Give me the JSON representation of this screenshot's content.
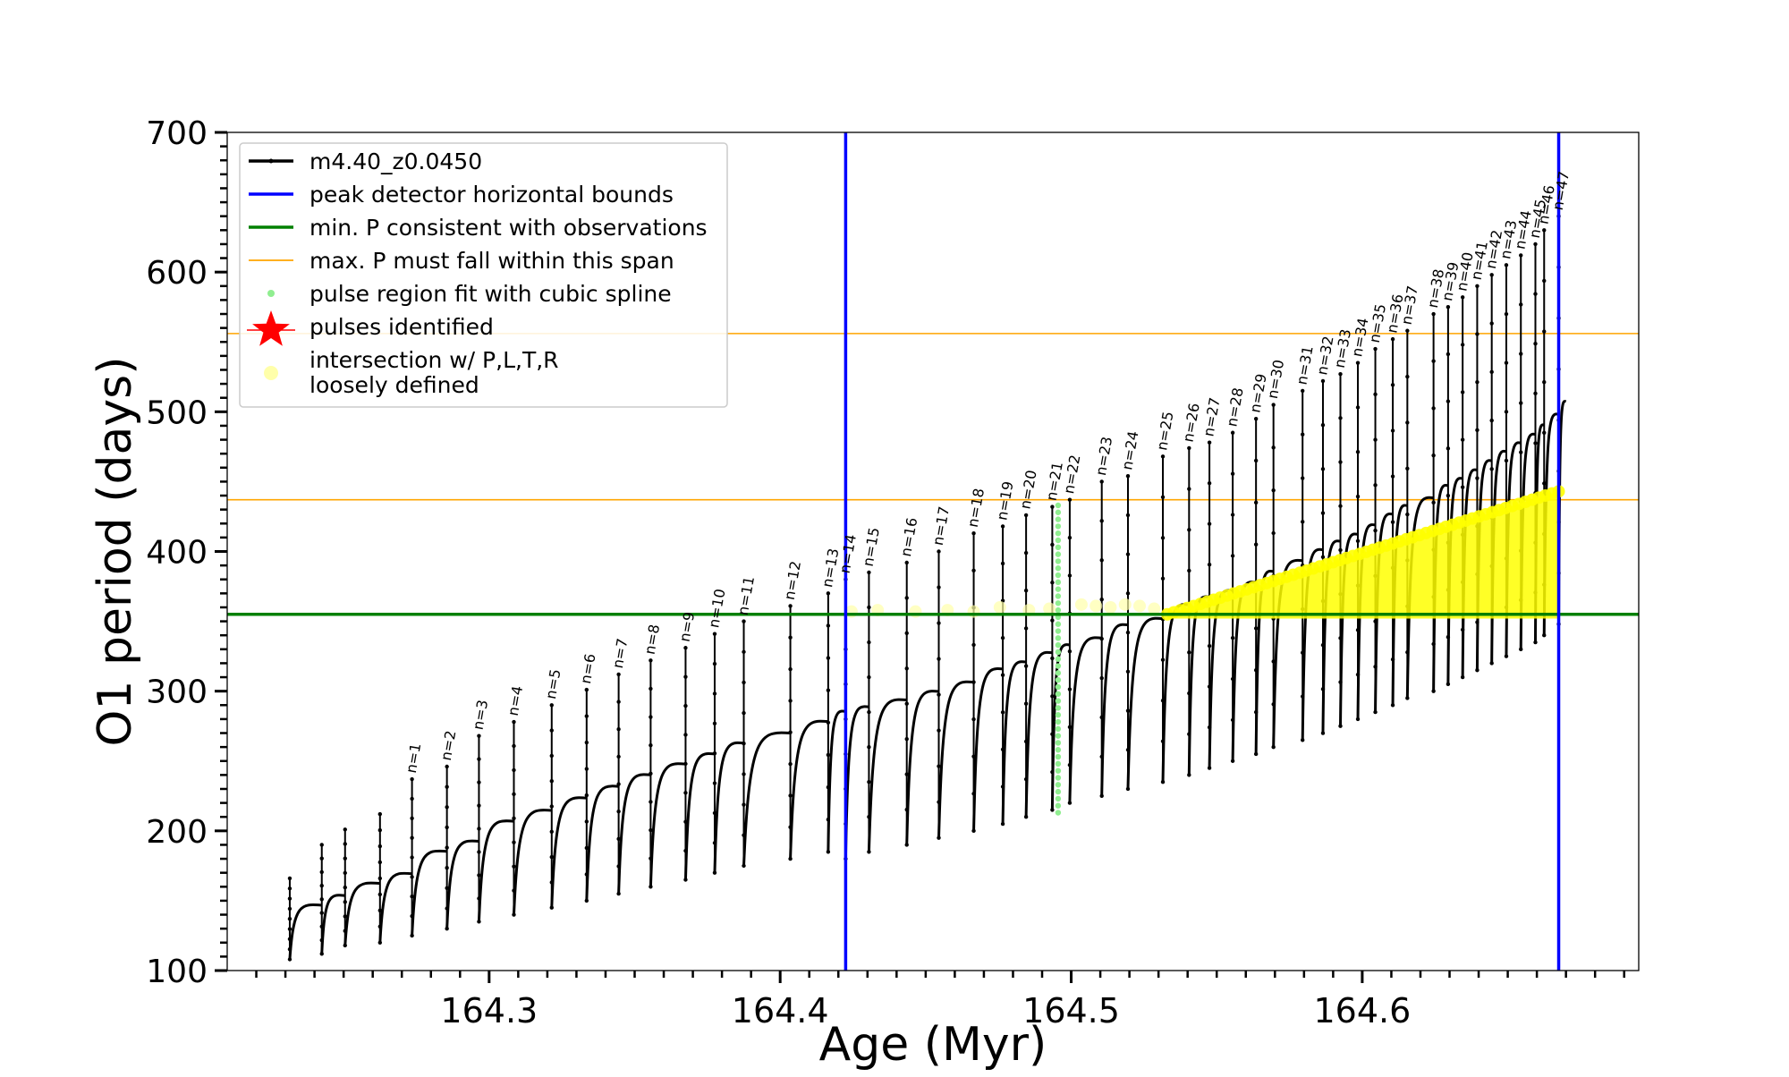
{
  "chart_data": {
    "type": "line",
    "xlabel": "Age (Myr)",
    "ylabel": "O1 period (days)",
    "xlim": [
      164.21,
      164.695
    ],
    "ylim": [
      100,
      700
    ],
    "x_ticks": [
      164.3,
      164.4,
      164.5,
      164.6
    ],
    "x_tick_labels": [
      "164.3",
      "164.4",
      "164.5",
      "164.6"
    ],
    "y_ticks": [
      100,
      200,
      300,
      400,
      500,
      600,
      700
    ],
    "y_tick_labels": [
      "100",
      "200",
      "300",
      "400",
      "500",
      "600",
      "700"
    ],
    "grid": false,
    "legend_position": "top-left",
    "legend": [
      {
        "label": "m4.40_z0.0450",
        "kind": "line-dot",
        "color": "#000000"
      },
      {
        "label": "peak detector horizontal bounds",
        "kind": "line",
        "color": "#0000ff"
      },
      {
        "label": "min. P consistent with observations",
        "kind": "line",
        "color": "#008000"
      },
      {
        "label": "max. P must fall within this span",
        "kind": "line",
        "color": "#ffa500"
      },
      {
        "label": "pulse region fit with cubic spline",
        "kind": "dot",
        "color": "#90ee90"
      },
      {
        "label": "pulses identified",
        "kind": "star",
        "color": "#ff0000"
      },
      {
        "label": "intersection w/ P,L,T,R",
        "label2": "loosely defined",
        "kind": "bigdot",
        "color": "#ffffaa"
      }
    ],
    "vertical_lines": [
      164.4225,
      164.6675
    ],
    "min_period": 355,
    "max_period_span": [
      437,
      556
    ],
    "pulse_labels": [
      "n=1",
      "n=2",
      "n=3",
      "n=4",
      "n=5",
      "n=6",
      "n=7",
      "n=8",
      "n=9",
      "n=10",
      "n=11",
      "n=12",
      "n=13",
      "n=14",
      "n=15",
      "n=16",
      "n=17",
      "n=18",
      "n=19",
      "n=20",
      "n=21",
      "n=22",
      "n=23",
      "n=24",
      "n=25",
      "n=26",
      "n=27",
      "n=28",
      "n=29",
      "n=30",
      "n=31",
      "n=32",
      "n=33",
      "n=34",
      "n=35",
      "n=36",
      "n=37",
      "n=38",
      "n=39",
      "n=40",
      "n=41",
      "n=42",
      "n=43",
      "n=44",
      "n=45",
      "n=46",
      "n=47"
    ],
    "pulses_pre": [
      {
        "x": 164.2315,
        "peak": 166,
        "min": 108
      },
      {
        "x": 164.2425,
        "peak": 190,
        "min": 112
      },
      {
        "x": 164.2505,
        "peak": 201,
        "min": 118
      },
      {
        "x": 164.2625,
        "peak": 212,
        "min": 120
      }
    ],
    "pulses": [
      {
        "x": 164.2735,
        "peak": 237,
        "min": 125
      },
      {
        "x": 164.2855,
        "peak": 246,
        "min": 130
      },
      {
        "x": 164.2965,
        "peak": 268,
        "min": 135
      },
      {
        "x": 164.3085,
        "peak": 278,
        "min": 140
      },
      {
        "x": 164.3215,
        "peak": 290,
        "min": 145
      },
      {
        "x": 164.3335,
        "peak": 301,
        "min": 150
      },
      {
        "x": 164.3445,
        "peak": 312,
        "min": 155
      },
      {
        "x": 164.3555,
        "peak": 322,
        "min": 160
      },
      {
        "x": 164.3675,
        "peak": 331,
        "min": 165
      },
      {
        "x": 164.3775,
        "peak": 341,
        "min": 170
      },
      {
        "x": 164.3875,
        "peak": 350,
        "min": 175
      },
      {
        "x": 164.4035,
        "peak": 361,
        "min": 180
      },
      {
        "x": 164.4165,
        "peak": 370,
        "min": 185
      },
      {
        "x": 164.4225,
        "peak": 380,
        "min": 180
      },
      {
        "x": 164.4305,
        "peak": 385,
        "min": 185
      },
      {
        "x": 164.4435,
        "peak": 392,
        "min": 190
      },
      {
        "x": 164.4545,
        "peak": 400,
        "min": 195
      },
      {
        "x": 164.4665,
        "peak": 413,
        "min": 200
      },
      {
        "x": 164.4765,
        "peak": 418,
        "min": 205
      },
      {
        "x": 164.4845,
        "peak": 426,
        "min": 210
      },
      {
        "x": 164.4935,
        "peak": 432,
        "min": 215
      },
      {
        "x": 164.4995,
        "peak": 437,
        "min": 220
      },
      {
        "x": 164.5105,
        "peak": 450,
        "min": 225
      },
      {
        "x": 164.5195,
        "peak": 454,
        "min": 230
      },
      {
        "x": 164.5315,
        "peak": 468,
        "min": 235
      },
      {
        "x": 164.5405,
        "peak": 474,
        "min": 240
      },
      {
        "x": 164.5475,
        "peak": 478,
        "min": 245
      },
      {
        "x": 164.5555,
        "peak": 485,
        "min": 250
      },
      {
        "x": 164.5635,
        "peak": 495,
        "min": 255
      },
      {
        "x": 164.5695,
        "peak": 505,
        "min": 260
      },
      {
        "x": 164.5795,
        "peak": 515,
        "min": 265
      },
      {
        "x": 164.5865,
        "peak": 522,
        "min": 270
      },
      {
        "x": 164.5925,
        "peak": 527,
        "min": 275
      },
      {
        "x": 164.5985,
        "peak": 535,
        "min": 280
      },
      {
        "x": 164.6045,
        "peak": 545,
        "min": 285
      },
      {
        "x": 164.6105,
        "peak": 552,
        "min": 290
      },
      {
        "x": 164.6155,
        "peak": 558,
        "min": 295
      },
      {
        "x": 164.6245,
        "peak": 570,
        "min": 300
      },
      {
        "x": 164.6295,
        "peak": 575,
        "min": 305
      },
      {
        "x": 164.6345,
        "peak": 582,
        "min": 310
      },
      {
        "x": 164.6395,
        "peak": 590,
        "min": 315
      },
      {
        "x": 164.6445,
        "peak": 598,
        "min": 320
      },
      {
        "x": 164.6495,
        "peak": 605,
        "min": 325
      },
      {
        "x": 164.6545,
        "peak": 612,
        "min": 330
      },
      {
        "x": 164.6595,
        "peak": 620,
        "min": 335
      },
      {
        "x": 164.6625,
        "peak": 630,
        "min": 340
      },
      {
        "x": 164.6675,
        "peak": 640,
        "min": 348
      }
    ],
    "spline_fit": {
      "x": 164.4955,
      "ymin": 213,
      "ymax": 437
    },
    "intersection_region": {
      "x_start": 164.533,
      "x_end": 164.6675,
      "y_low": 352,
      "y_high_start": 355,
      "y_high_end": 443
    },
    "sparse_intersections": [
      {
        "x": 164.4245,
        "y": 357
      },
      {
        "x": 164.4335,
        "y": 358
      },
      {
        "x": 164.4465,
        "y": 357
      },
      {
        "x": 164.4575,
        "y": 358
      },
      {
        "x": 164.4665,
        "y": 357
      },
      {
        "x": 164.4755,
        "y": 360
      },
      {
        "x": 164.4855,
        "y": 358
      },
      {
        "x": 164.4925,
        "y": 359
      },
      {
        "x": 164.5035,
        "y": 362
      },
      {
        "x": 164.5085,
        "y": 361
      },
      {
        "x": 164.5135,
        "y": 360
      },
      {
        "x": 164.5185,
        "y": 362
      },
      {
        "x": 164.5235,
        "y": 361
      },
      {
        "x": 164.5285,
        "y": 359
      }
    ]
  }
}
